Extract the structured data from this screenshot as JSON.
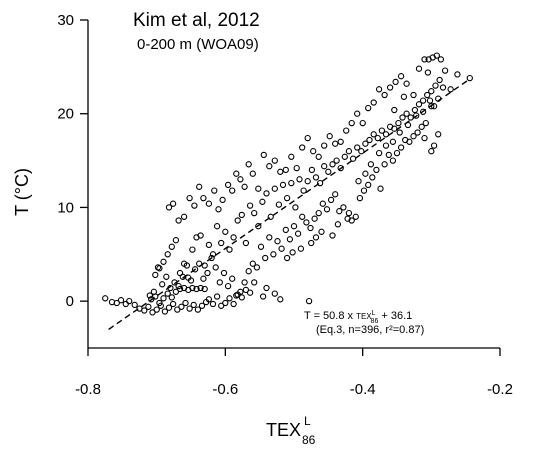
{
  "chart_data": {
    "type": "scatter",
    "title": "Kim et al, 2012",
    "subtitle": "0-200 m (WOA09)",
    "xlabel": "TEX",
    "xlabel_sup": "L",
    "xlabel_sub": "86",
    "ylabel": "T (°C)",
    "xlim": [
      -0.8,
      -0.2
    ],
    "ylim": [
      -5,
      30
    ],
    "xticks": [
      -0.8,
      -0.6,
      -0.4,
      -0.2
    ],
    "xtick_labels": [
      "-0.8",
      "-0.6",
      "-0.4",
      "-0.2"
    ],
    "yticks": [
      0,
      10,
      20,
      30
    ],
    "ytick_labels": [
      "0",
      "10",
      "20",
      "30"
    ],
    "grid": false,
    "regression": {
      "slope": 50.8,
      "intercept": 36.1,
      "x_range": [
        -0.77,
        -0.245
      ],
      "style": "dashed"
    },
    "equation_line1_pre": "T = 50.8 x ",
    "equation_line1_tex": "TEX",
    "equation_line1_sup": "L",
    "equation_line1_sub": "86",
    "equation_line1_post": " + 36.1",
    "equation_line2": "(Eq.3, n=396, r²=0.87)",
    "series": [
      {
        "marker": "open-circle",
        "color": "#000000",
        "points": [
          [
            -0.775,
            0.3
          ],
          [
            -0.765,
            -0.1
          ],
          [
            -0.758,
            -0.2
          ],
          [
            -0.752,
            0.1
          ],
          [
            -0.745,
            -0.3
          ],
          [
            -0.74,
            0.0
          ],
          [
            -0.732,
            -0.4
          ],
          [
            -0.725,
            -0.8
          ],
          [
            -0.718,
            -1.0
          ],
          [
            -0.712,
            -0.6
          ],
          [
            -0.706,
            -1.2
          ],
          [
            -0.7,
            -0.9
          ],
          [
            -0.694,
            -0.5
          ],
          [
            -0.688,
            -1.1
          ],
          [
            -0.682,
            -0.7
          ],
          [
            -0.676,
            -0.3
          ],
          [
            -0.67,
            -0.9
          ],
          [
            -0.664,
            -0.6
          ],
          [
            -0.658,
            -0.2
          ],
          [
            -0.652,
            -0.8
          ],
          [
            -0.646,
            -0.4
          ],
          [
            -0.64,
            -0.9
          ],
          [
            -0.634,
            -0.5
          ],
          [
            -0.628,
            -0.1
          ],
          [
            -0.708,
            0.2
          ],
          [
            -0.702,
            0.5
          ],
          [
            -0.696,
            -0.2
          ],
          [
            -0.69,
            0.3
          ],
          [
            -0.684,
            0.8
          ],
          [
            -0.678,
            0.4
          ],
          [
            -0.672,
            1.0
          ],
          [
            -0.666,
            1.3
          ],
          [
            -0.66,
            1.4
          ],
          [
            -0.654,
            1.2
          ],
          [
            -0.648,
            1.4
          ],
          [
            -0.642,
            1.3
          ],
          [
            -0.636,
            1.4
          ],
          [
            -0.63,
            1.3
          ],
          [
            -0.624,
            0.2
          ],
          [
            -0.618,
            -0.3
          ],
          [
            -0.612,
            0.5
          ],
          [
            -0.606,
            -0.5
          ],
          [
            -0.6,
            -0.2
          ],
          [
            -0.594,
            0.3
          ],
          [
            -0.588,
            -0.3
          ],
          [
            -0.582,
            0.7
          ],
          [
            -0.576,
            0.4
          ],
          [
            -0.57,
            1.2
          ],
          [
            -0.564,
            0.9
          ],
          [
            -0.558,
            2.0
          ],
          [
            -0.702,
            2.8
          ],
          [
            -0.696,
            3.5
          ],
          [
            -0.69,
            4.2
          ],
          [
            -0.684,
            5.0
          ],
          [
            -0.678,
            5.8
          ],
          [
            -0.672,
            6.5
          ],
          [
            -0.666,
            3.0
          ],
          [
            -0.66,
            4.0
          ],
          [
            -0.654,
            2.5
          ],
          [
            -0.648,
            5.5
          ],
          [
            -0.642,
            6.8
          ],
          [
            -0.636,
            7.0
          ],
          [
            -0.63,
            3.8
          ],
          [
            -0.624,
            6.0
          ],
          [
            -0.618,
            5.0
          ],
          [
            -0.612,
            8.0
          ],
          [
            -0.606,
            6.2
          ],
          [
            -0.6,
            7.4
          ],
          [
            -0.594,
            5.5
          ],
          [
            -0.588,
            6.8
          ],
          [
            -0.582,
            8.6
          ],
          [
            -0.576,
            9.2
          ],
          [
            -0.57,
            6.2
          ],
          [
            -0.564,
            10.2
          ],
          [
            -0.558,
            9.4
          ],
          [
            -0.552,
            8.0
          ],
          [
            -0.546,
            10.6
          ],
          [
            -0.54,
            11.5
          ],
          [
            -0.534,
            9.0
          ],
          [
            -0.528,
            12.0
          ],
          [
            -0.522,
            10.3
          ],
          [
            -0.516,
            12.4
          ],
          [
            -0.51,
            11.0
          ],
          [
            -0.504,
            12.6
          ],
          [
            -0.498,
            10.0
          ],
          [
            -0.492,
            13.0
          ],
          [
            -0.486,
            11.8
          ],
          [
            -0.48,
            12.8
          ],
          [
            -0.474,
            14.0
          ],
          [
            -0.468,
            13.2
          ],
          [
            -0.462,
            12.6
          ],
          [
            -0.456,
            14.4
          ],
          [
            -0.45,
            13.8
          ],
          [
            -0.444,
            14.6
          ],
          [
            -0.438,
            15.0
          ],
          [
            -0.432,
            14.2
          ],
          [
            -0.426,
            15.4
          ],
          [
            -0.42,
            16.0
          ],
          [
            -0.414,
            15.2
          ],
          [
            -0.408,
            16.4
          ],
          [
            -0.402,
            16.0
          ],
          [
            -0.396,
            16.8
          ],
          [
            -0.39,
            17.2
          ],
          [
            -0.384,
            17.8
          ],
          [
            -0.378,
            17.4
          ],
          [
            -0.372,
            18.2
          ],
          [
            -0.366,
            17.8
          ],
          [
            -0.36,
            18.6
          ],
          [
            -0.354,
            18.4
          ],
          [
            -0.348,
            19.0
          ],
          [
            -0.342,
            19.6
          ],
          [
            -0.336,
            20.0
          ],
          [
            -0.33,
            19.6
          ],
          [
            -0.324,
            20.4
          ],
          [
            -0.318,
            21.0
          ],
          [
            -0.312,
            21.4
          ],
          [
            -0.306,
            22.0
          ],
          [
            -0.3,
            22.4
          ],
          [
            -0.294,
            23.0
          ],
          [
            -0.288,
            23.6
          ],
          [
            -0.682,
            10.0
          ],
          [
            -0.676,
            10.4
          ],
          [
            -0.668,
            8.6
          ],
          [
            -0.66,
            9.0
          ],
          [
            -0.652,
            11.0
          ],
          [
            -0.645,
            10.2
          ],
          [
            -0.638,
            12.2
          ],
          [
            -0.632,
            11.0
          ],
          [
            -0.624,
            10.4
          ],
          [
            -0.616,
            11.8
          ],
          [
            -0.61,
            9.8
          ],
          [
            -0.604,
            10.8
          ],
          [
            -0.596,
            12.4
          ],
          [
            -0.59,
            11.8
          ],
          [
            -0.584,
            13.6
          ],
          [
            -0.578,
            13.0
          ],
          [
            -0.572,
            12.2
          ],
          [
            -0.566,
            14.6
          ],
          [
            -0.56,
            13.6
          ],
          [
            -0.552,
            12.0
          ],
          [
            -0.544,
            15.6
          ],
          [
            -0.536,
            14.4
          ],
          [
            -0.528,
            15.0
          ],
          [
            -0.52,
            13.8
          ],
          [
            -0.512,
            14.0
          ],
          [
            -0.504,
            15.4
          ],
          [
            -0.496,
            14.2
          ],
          [
            -0.488,
            16.4
          ],
          [
            -0.48,
            17.4
          ],
          [
            -0.472,
            16.0
          ],
          [
            -0.464,
            15.4
          ],
          [
            -0.456,
            16.6
          ],
          [
            -0.448,
            17.6
          ],
          [
            -0.44,
            16.8
          ],
          [
            -0.432,
            17.0
          ],
          [
            -0.424,
            18.2
          ],
          [
            -0.416,
            19.0
          ],
          [
            -0.408,
            20.0
          ],
          [
            -0.4,
            19.0
          ],
          [
            -0.392,
            20.6
          ],
          [
            -0.384,
            21.2
          ],
          [
            -0.376,
            22.6
          ],
          [
            -0.368,
            22.0
          ],
          [
            -0.36,
            22.8
          ],
          [
            -0.352,
            23.4
          ],
          [
            -0.344,
            24.0
          ],
          [
            -0.336,
            23.2
          ],
          [
            -0.326,
            22.0
          ],
          [
            -0.318,
            24.8
          ],
          [
            -0.31,
            25.8
          ],
          [
            -0.304,
            25.8
          ],
          [
            -0.298,
            26.0
          ],
          [
            -0.292,
            26.2
          ],
          [
            -0.286,
            25.8
          ],
          [
            -0.283,
            22.8
          ],
          [
            -0.29,
            21.6
          ],
          [
            -0.296,
            20.8
          ],
          [
            -0.302,
            21.4
          ],
          [
            -0.308,
            19.0
          ],
          [
            -0.314,
            18.6
          ],
          [
            -0.32,
            18.0
          ],
          [
            -0.326,
            17.6
          ],
          [
            -0.332,
            17.0
          ],
          [
            -0.338,
            17.2
          ],
          [
            -0.344,
            16.4
          ],
          [
            -0.35,
            15.8
          ],
          [
            -0.356,
            15.0
          ],
          [
            -0.362,
            15.6
          ],
          [
            -0.368,
            14.6
          ],
          [
            -0.374,
            12.0
          ],
          [
            -0.38,
            14.0
          ],
          [
            -0.386,
            13.2
          ],
          [
            -0.392,
            12.4
          ],
          [
            -0.398,
            11.8
          ],
          [
            -0.404,
            11.0
          ],
          [
            -0.41,
            9.0
          ],
          [
            -0.416,
            8.6
          ],
          [
            -0.422,
            8.8
          ],
          [
            -0.428,
            10.0
          ],
          [
            -0.434,
            9.6
          ],
          [
            -0.44,
            11.4
          ],
          [
            -0.446,
            10.8
          ],
          [
            -0.452,
            9.8
          ],
          [
            -0.458,
            10.4
          ],
          [
            -0.464,
            9.4
          ],
          [
            -0.47,
            8.8
          ],
          [
            -0.476,
            7.8
          ],
          [
            -0.482,
            8.4
          ],
          [
            -0.488,
            9.0
          ],
          [
            -0.494,
            7.2
          ],
          [
            -0.5,
            8.0
          ],
          [
            -0.506,
            6.6
          ],
          [
            -0.512,
            7.6
          ],
          [
            -0.518,
            5.6
          ],
          [
            -0.524,
            6.4
          ],
          [
            -0.53,
            5.0
          ],
          [
            -0.536,
            6.8
          ],
          [
            -0.542,
            4.6
          ],
          [
            -0.548,
            5.8
          ],
          [
            -0.554,
            3.6
          ],
          [
            -0.56,
            4.0
          ],
          [
            -0.566,
            3.2
          ],
          [
            -0.572,
            2.0
          ],
          [
            -0.578,
            1.0
          ],
          [
            -0.584,
            0.6
          ],
          [
            -0.59,
            2.4
          ],
          [
            -0.596,
            1.6
          ],
          [
            -0.602,
            3.0
          ],
          [
            -0.608,
            2.0
          ],
          [
            -0.614,
            3.6
          ],
          [
            -0.62,
            4.6
          ],
          [
            -0.626,
            3.0
          ],
          [
            -0.632,
            2.4
          ],
          [
            -0.638,
            4.0
          ],
          [
            -0.644,
            3.4
          ],
          [
            -0.65,
            2.2
          ],
          [
            -0.656,
            3.8
          ],
          [
            -0.662,
            2.6
          ],
          [
            -0.668,
            1.6
          ],
          [
            -0.674,
            2.0
          ],
          [
            -0.68,
            1.4
          ],
          [
            -0.686,
            2.6
          ],
          [
            -0.692,
            1.8
          ],
          [
            -0.698,
            3.6
          ],
          [
            -0.704,
            1.0
          ],
          [
            -0.71,
            0.6
          ],
          [
            -0.545,
            0.5
          ],
          [
            -0.54,
            1.4
          ],
          [
            -0.528,
            0.8
          ],
          [
            -0.52,
            0.2
          ],
          [
            -0.478,
            0.0
          ],
          [
            -0.51,
            4.6
          ],
          [
            -0.502,
            5.2
          ],
          [
            -0.49,
            5.6
          ],
          [
            -0.475,
            6.2
          ],
          [
            -0.468,
            6.8
          ],
          [
            -0.46,
            7.4
          ],
          [
            -0.444,
            7.0
          ],
          [
            -0.436,
            8.2
          ],
          [
            -0.42,
            9.4
          ],
          [
            -0.406,
            12.8
          ],
          [
            -0.396,
            13.6
          ],
          [
            -0.388,
            14.6
          ],
          [
            -0.376,
            15.8
          ],
          [
            -0.366,
            16.6
          ],
          [
            -0.356,
            17.0
          ],
          [
            -0.346,
            18.0
          ],
          [
            -0.334,
            18.8
          ],
          [
            -0.322,
            19.8
          ],
          [
            -0.312,
            20.2
          ],
          [
            -0.3,
            20.8
          ],
          [
            -0.29,
            17.8
          ],
          [
            -0.296,
            16.6
          ],
          [
            -0.3,
            16.0
          ],
          [
            -0.31,
            17.4
          ],
          [
            -0.244,
            23.8
          ],
          [
            -0.262,
            24.2
          ],
          [
            -0.272,
            22.6
          ],
          [
            -0.28,
            24.6
          ],
          [
            -0.305,
            24.4
          ],
          [
            -0.34,
            21.8
          ],
          [
            -0.354,
            20.4
          ]
        ]
      }
    ]
  }
}
